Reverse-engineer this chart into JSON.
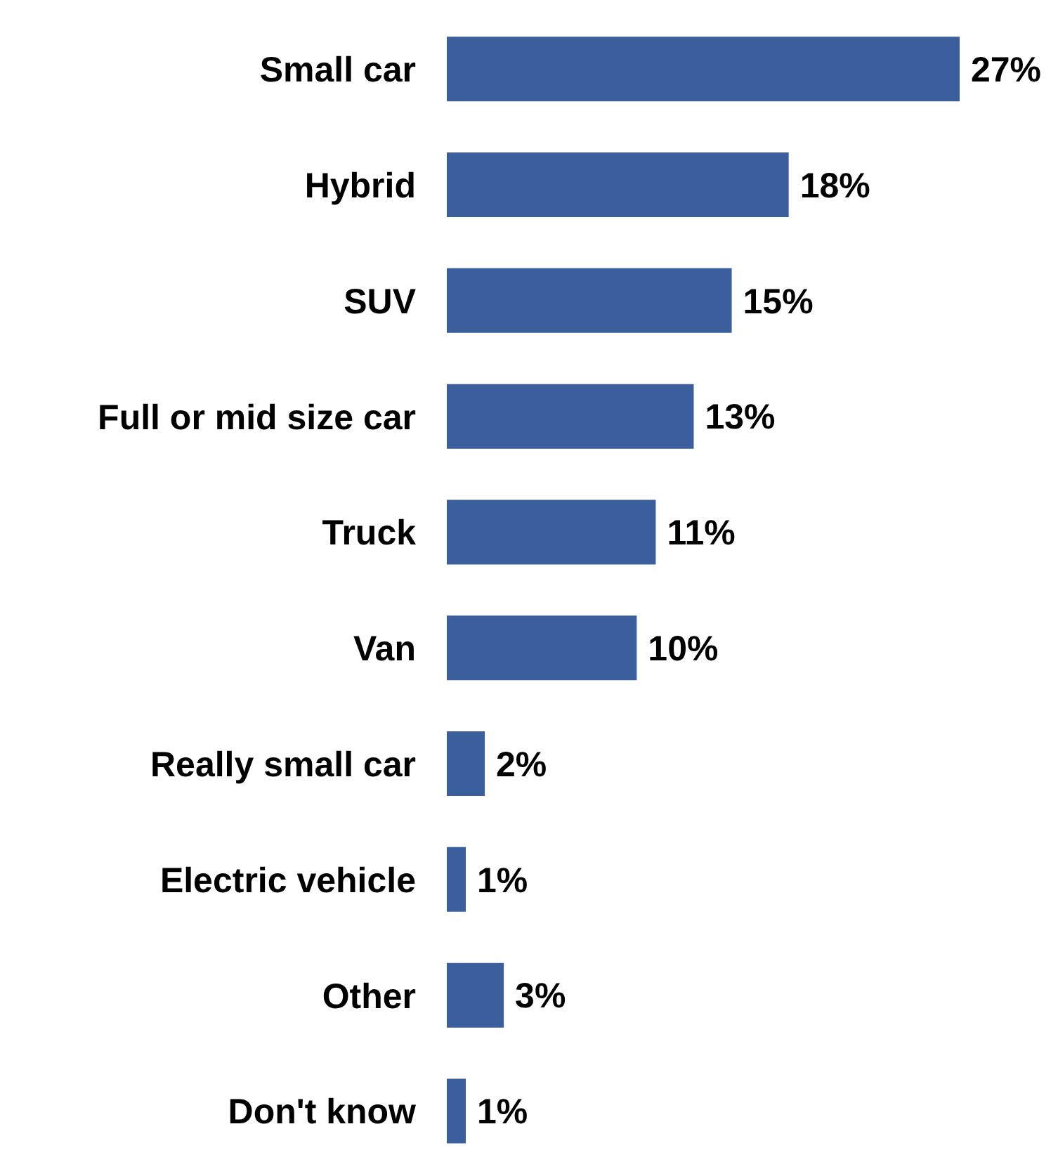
{
  "chart_data": {
    "type": "bar",
    "orientation": "horizontal",
    "categories": [
      "Small car",
      "Hybrid",
      "SUV",
      "Full or mid size car",
      "Truck",
      "Van",
      "Really small car",
      "Electric vehicle",
      "Other",
      "Don't know"
    ],
    "values": [
      27,
      18,
      15,
      13,
      11,
      10,
      2,
      1,
      3,
      1
    ],
    "value_labels": [
      "27%",
      "18%",
      "15%",
      "13%",
      "11%",
      "10%",
      "2%",
      "1%",
      "3%",
      "1%"
    ],
    "color": "#3a5f9c"
  }
}
